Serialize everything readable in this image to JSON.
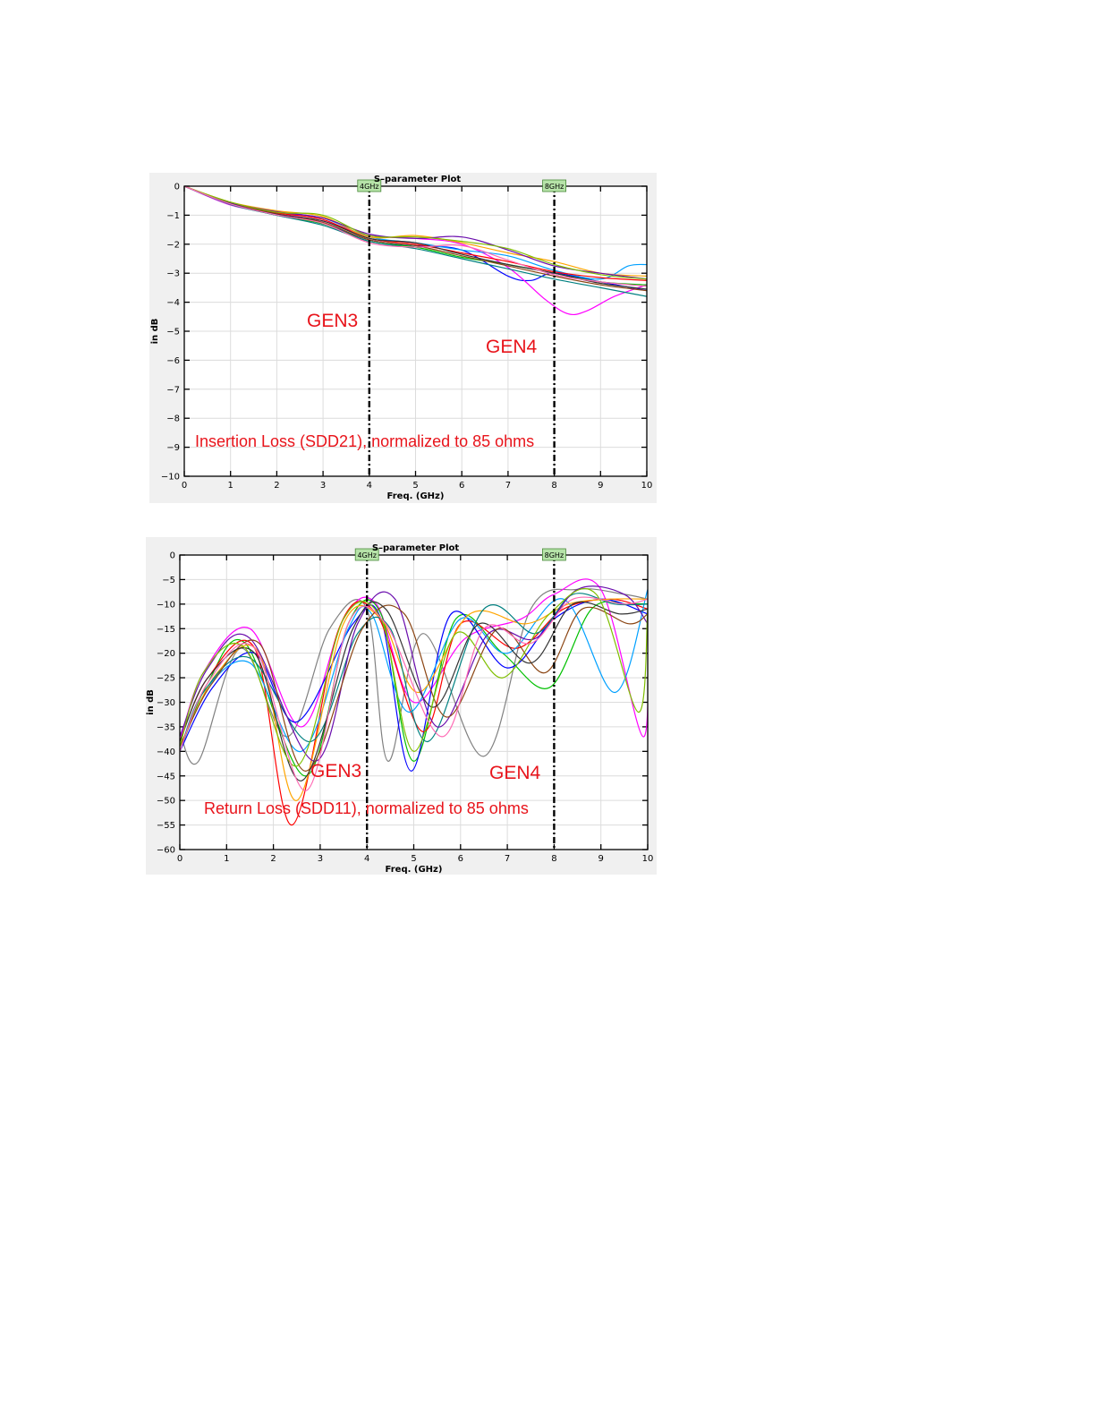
{
  "chart_data": [
    {
      "type": "line",
      "title": "S–parameter Plot",
      "xlabel": "Freq. (GHz)",
      "ylabel": "in dB",
      "xlim": [
        0,
        10
      ],
      "ylim": [
        -10,
        0
      ],
      "x_ticks": [
        "0",
        "1",
        "2",
        "3",
        "4",
        "5",
        "6",
        "7",
        "8",
        "9",
        "10"
      ],
      "y_ticks": [
        "0",
        "−1",
        "−2",
        "−3",
        "−4",
        "−5",
        "−6",
        "−7",
        "−8",
        "−9",
        "−10"
      ],
      "grid": true,
      "markers": [
        {
          "x": 4,
          "label": "4GHz"
        },
        {
          "x": 8,
          "label": "8GHz"
        }
      ],
      "annotations": {
        "left_band": "GEN3",
        "right_band": "GEN4",
        "note": "Insertion Loss (SDD21), normalized to 85 ohms"
      },
      "series": [
        {
          "color": "#0000ff",
          "x": [
            0,
            1,
            2,
            3,
            4,
            5,
            6,
            7,
            7.5,
            8,
            9,
            10
          ],
          "values": [
            0,
            -0.6,
            -1.0,
            -1.3,
            -1.85,
            -2.05,
            -2.2,
            -3.1,
            -3.25,
            -3.0,
            -3.3,
            -3.6
          ]
        },
        {
          "color": "#ff00ff",
          "x": [
            0,
            1,
            2,
            3,
            4,
            5,
            6,
            7,
            7.8,
            8.3,
            8.7,
            9.3,
            10
          ],
          "values": [
            0,
            -0.65,
            -0.95,
            -1.2,
            -1.7,
            -1.8,
            -2.0,
            -2.8,
            -3.9,
            -4.4,
            -4.3,
            -3.8,
            -3.4
          ]
        },
        {
          "color": "#00a0ff",
          "x": [
            0,
            1,
            2,
            3,
            4,
            5,
            6,
            7,
            8,
            9,
            9.6,
            10
          ],
          "values": [
            0,
            -0.6,
            -0.9,
            -1.1,
            -1.75,
            -1.95,
            -2.2,
            -2.4,
            -2.9,
            -3.2,
            -2.75,
            -2.7
          ]
        },
        {
          "color": "#ffa500",
          "x": [
            0,
            1,
            2,
            3,
            4,
            5,
            6,
            7,
            8,
            9,
            10
          ],
          "values": [
            0,
            -0.55,
            -0.85,
            -1.05,
            -1.75,
            -1.7,
            -1.95,
            -2.3,
            -2.6,
            -3.0,
            -3.1
          ]
        },
        {
          "color": "#00c000",
          "x": [
            0,
            1,
            2,
            3,
            4,
            5,
            6,
            7,
            8,
            9,
            10
          ],
          "values": [
            0,
            -0.62,
            -1.0,
            -1.3,
            -1.9,
            -2.1,
            -2.45,
            -2.7,
            -3.0,
            -3.3,
            -3.4
          ]
        },
        {
          "color": "#ff0000",
          "x": [
            0,
            1,
            2,
            3,
            4,
            5,
            6,
            7,
            8,
            9,
            10
          ],
          "values": [
            0,
            -0.58,
            -0.92,
            -1.15,
            -1.8,
            -2.0,
            -2.3,
            -2.6,
            -2.95,
            -3.15,
            -3.25
          ]
        },
        {
          "color": "#8b4513",
          "x": [
            0,
            1,
            2,
            3,
            4,
            5,
            6,
            7,
            8,
            9,
            10
          ],
          "values": [
            0,
            -0.6,
            -0.95,
            -1.25,
            -1.85,
            -2.05,
            -2.4,
            -2.75,
            -3.1,
            -3.4,
            -3.6
          ]
        },
        {
          "color": "#008080",
          "x": [
            0,
            1,
            2,
            3,
            4,
            5,
            6,
            7,
            8,
            9,
            10
          ],
          "values": [
            0,
            -0.63,
            -1.0,
            -1.35,
            -1.9,
            -2.15,
            -2.5,
            -2.85,
            -3.2,
            -3.5,
            -3.8
          ]
        },
        {
          "color": "#6a0dad",
          "x": [
            0,
            1,
            2,
            3,
            4,
            5,
            6,
            7,
            8,
            9,
            10
          ],
          "values": [
            0,
            -0.57,
            -0.88,
            -1.1,
            -1.65,
            -1.8,
            -1.75,
            -2.2,
            -2.75,
            -3.0,
            -3.2
          ]
        },
        {
          "color": "#333333",
          "x": [
            0,
            1,
            2,
            3,
            4,
            5,
            6,
            7,
            8,
            9,
            10
          ],
          "values": [
            0,
            -0.6,
            -0.97,
            -1.2,
            -1.8,
            -1.95,
            -2.35,
            -2.7,
            -3.0,
            -3.35,
            -3.55
          ]
        },
        {
          "color": "#7fbf00",
          "x": [
            0,
            1,
            2,
            3,
            4,
            5,
            6,
            7,
            8,
            9,
            10
          ],
          "values": [
            0,
            -0.55,
            -0.9,
            -1.0,
            -1.7,
            -1.75,
            -1.9,
            -2.15,
            -2.7,
            -3.05,
            -3.2
          ]
        },
        {
          "color": "#ff69b4",
          "x": [
            0,
            1,
            2,
            3,
            4,
            5,
            6,
            7,
            8,
            9,
            10
          ],
          "values": [
            0,
            -0.61,
            -0.99,
            -1.28,
            -1.95,
            -2.1,
            -2.05,
            -2.55,
            -3.05,
            -3.3,
            -3.45
          ]
        }
      ]
    },
    {
      "type": "line",
      "title": "S–parameter Plot",
      "xlabel": "Freq. (GHz)",
      "ylabel": "in dB",
      "xlim": [
        0,
        10
      ],
      "ylim": [
        -60,
        0
      ],
      "x_ticks": [
        "0",
        "1",
        "2",
        "3",
        "4",
        "5",
        "6",
        "7",
        "8",
        "9",
        "10"
      ],
      "y_ticks": [
        "0",
        "−5",
        "−10",
        "−15",
        "−20",
        "−25",
        "−30",
        "−35",
        "−40",
        "−45",
        "−50",
        "−55",
        "−60"
      ],
      "grid": true,
      "markers": [
        {
          "x": 4,
          "label": "4GHz"
        },
        {
          "x": 8,
          "label": "8GHz"
        }
      ],
      "annotations": {
        "left_band": "GEN3",
        "right_band": "GEN4",
        "note": "Return Loss (SDD11), normalized to 85 ohms"
      },
      "series": [
        {
          "color": "#808080",
          "x": [
            0,
            0.4,
            1.3,
            2.3,
            3.2,
            4.0,
            4.45,
            5.2,
            6.5,
            7.5,
            8.5,
            9.5,
            10
          ],
          "values": [
            -36,
            -42,
            -19,
            -37,
            -15,
            -11,
            -42,
            -16,
            -41,
            -11,
            -7,
            -8,
            -9
          ]
        },
        {
          "color": "#ff00ff",
          "x": [
            0,
            0.5,
            1.5,
            2.6,
            3.5,
            4.2,
            5.0,
            6.1,
            7.3,
            8.0,
            9.0,
            9.9,
            10
          ],
          "values": [
            -38,
            -24,
            -15,
            -35,
            -13,
            -10,
            -30,
            -17,
            -13,
            -8,
            -7,
            -37,
            -12
          ]
        },
        {
          "color": "#00c000",
          "x": [
            0,
            0.6,
            1.4,
            2.7,
            3.6,
            4.3,
            5.0,
            5.9,
            6.9,
            7.9,
            8.8,
            9.6,
            10
          ],
          "values": [
            -40,
            -26,
            -18,
            -45,
            -14,
            -12,
            -42,
            -13,
            -20,
            -27,
            -11,
            -10,
            -10
          ]
        },
        {
          "color": "#0000ff",
          "x": [
            0,
            0.7,
            1.6,
            2.5,
            3.7,
            4.3,
            4.95,
            5.8,
            7.0,
            8.0,
            9.0,
            10
          ],
          "values": [
            -40,
            -27,
            -20,
            -34,
            -14,
            -13,
            -44,
            -12,
            -23,
            -13,
            -9,
            -12
          ]
        },
        {
          "color": "#ff0000",
          "x": [
            0,
            0.6,
            1.6,
            2.4,
            3.4,
            4.2,
            5.2,
            6.0,
            7.2,
            8.2,
            9.2,
            10
          ],
          "values": [
            -38,
            -25,
            -19,
            -55,
            -15,
            -12,
            -36,
            -14,
            -19,
            -11,
            -9,
            -11
          ]
        },
        {
          "color": "#00a0ff",
          "x": [
            0,
            0.5,
            1.5,
            2.6,
            3.6,
            4.1,
            4.9,
            6.0,
            7.0,
            8.2,
            9.3,
            10
          ],
          "values": [
            -40,
            -28,
            -22,
            -40,
            -15,
            -12,
            -32,
            -13,
            -20,
            -9,
            -28,
            -7
          ]
        },
        {
          "color": "#ffa500",
          "x": [
            0,
            0.8,
            1.7,
            2.5,
            3.5,
            4.3,
            5.1,
            6.2,
            7.4,
            8.3,
            9.2,
            10
          ],
          "values": [
            -39,
            -24,
            -20,
            -50,
            -14,
            -13,
            -28,
            -12,
            -14,
            -10,
            -9,
            -9
          ]
        },
        {
          "color": "#008080",
          "x": [
            0,
            0.5,
            1.5,
            2.8,
            3.8,
            4.5,
            5.3,
            6.5,
            7.6,
            8.4,
            9.3,
            10
          ],
          "values": [
            -40,
            -28,
            -21,
            -38,
            -16,
            -15,
            -38,
            -11,
            -16,
            -8,
            -10,
            -10
          ]
        },
        {
          "color": "#6a0dad",
          "x": [
            0,
            0.6,
            1.5,
            2.9,
            3.8,
            4.6,
            5.5,
            6.6,
            7.6,
            8.5,
            9.5,
            10
          ],
          "values": [
            -37,
            -23,
            -17,
            -42,
            -14,
            -9,
            -35,
            -16,
            -17,
            -7,
            -8,
            -14
          ]
        },
        {
          "color": "#8b4513",
          "x": [
            0,
            0.7,
            1.7,
            2.7,
            3.9,
            4.8,
            5.7,
            6.8,
            7.8,
            8.6,
            9.6,
            10
          ],
          "values": [
            -39,
            -26,
            -18,
            -44,
            -15,
            -12,
            -33,
            -15,
            -24,
            -11,
            -14,
            -12
          ]
        },
        {
          "color": "#333333",
          "x": [
            0,
            0.6,
            1.6,
            2.6,
            3.7,
            4.4,
            5.4,
            6.4,
            7.5,
            8.4,
            9.4,
            10
          ],
          "values": [
            -38,
            -25,
            -20,
            -46,
            -15,
            -11,
            -31,
            -14,
            -22,
            -10,
            -12,
            -11
          ]
        },
        {
          "color": "#7fbf00",
          "x": [
            0,
            0.5,
            1.4,
            2.5,
            3.5,
            4.3,
            5.0,
            5.9,
            6.9,
            7.9,
            8.9,
            9.8,
            10
          ],
          "values": [
            -39,
            -24,
            -19,
            -43,
            -13,
            -13,
            -40,
            -16,
            -25,
            -12,
            -8,
            -32,
            -11
          ]
        },
        {
          "color": "#ff69b4",
          "x": [
            0,
            0.6,
            1.6,
            2.7,
            3.6,
            4.4,
            5.6,
            6.5,
            7.5,
            8.4,
            9.5,
            10
          ],
          "values": [
            -40,
            -26,
            -19,
            -48,
            -14,
            -14,
            -37,
            -15,
            -18,
            -9,
            -10,
            -9
          ]
        }
      ]
    }
  ]
}
